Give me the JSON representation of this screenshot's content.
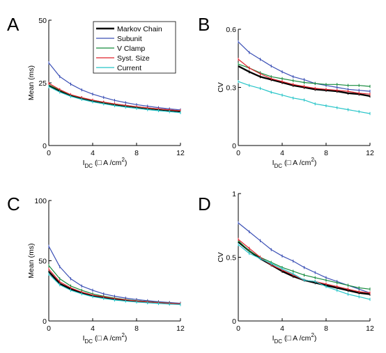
{
  "panels_letters": [
    "A",
    "B",
    "C",
    "D"
  ],
  "chart_data": [
    {
      "panel": "A",
      "type": "line",
      "xlabel_main": "I",
      "xlabel_sub": "DC",
      "xlabel_unit": " (□ A /cm",
      "xlabel_sup": "2",
      "xlabel_close": ")",
      "ylabel": "Mean (ms)",
      "xlim": [
        0,
        12
      ],
      "ylim": [
        0,
        50
      ],
      "xticks": [
        0,
        4,
        8,
        12
      ],
      "yticks": [
        0,
        25,
        50
      ],
      "legend_title_shown": true,
      "x": [
        0,
        1,
        2,
        3,
        4,
        5,
        6,
        7,
        8,
        9,
        10,
        11,
        12
      ],
      "series": [
        {
          "name": "Markov Chain",
          "color": "#000000",
          "width": 2.4,
          "values": [
            24.0,
            21.8,
            20.0,
            18.9,
            17.9,
            17.1,
            16.4,
            15.8,
            15.3,
            14.8,
            14.4,
            14.0,
            13.6
          ]
        },
        {
          "name": "Subunit",
          "color": "#3a4fb5",
          "width": 1.2,
          "values": [
            33.0,
            27.5,
            24.5,
            22.2,
            20.5,
            19.2,
            18.0,
            17.1,
            16.3,
            15.7,
            15.1,
            14.6,
            14.2
          ]
        },
        {
          "name": "V Clamp",
          "color": "#148a3c",
          "width": 1.2,
          "values": [
            24.2,
            22.1,
            20.2,
            19.0,
            18.0,
            17.2,
            16.5,
            15.9,
            15.4,
            14.9,
            14.5,
            14.1,
            13.8
          ]
        },
        {
          "name": "Syst. Size",
          "color": "#e0202a",
          "width": 1.2,
          "values": [
            24.8,
            22.3,
            20.3,
            19.1,
            18.1,
            17.3,
            16.6,
            16.0,
            15.5,
            15.0,
            14.6,
            14.2,
            13.9
          ]
        },
        {
          "name": "Current",
          "color": "#25c4c8",
          "width": 1.2,
          "values": [
            23.5,
            21.3,
            19.6,
            18.4,
            17.4,
            16.6,
            15.9,
            15.3,
            14.8,
            14.3,
            13.9,
            13.5,
            13.1
          ]
        }
      ]
    },
    {
      "panel": "B",
      "type": "line",
      "xlabel_main": "I",
      "xlabel_sub": "DC",
      "xlabel_unit": " (□ A /cm",
      "xlabel_sup": "2",
      "xlabel_close": ")",
      "ylabel": "CV",
      "xlim": [
        0,
        12
      ],
      "ylim": [
        0,
        0.6
      ],
      "xticks": [
        0,
        4,
        8,
        12
      ],
      "yticks": [
        0,
        0.3,
        0.6
      ],
      "ytick_labels": [
        "0",
        "0.3",
        "0.6"
      ],
      "x": [
        0,
        1,
        2,
        3,
        4,
        5,
        6,
        7,
        8,
        9,
        10,
        11,
        12
      ],
      "series": [
        {
          "name": "Markov Chain",
          "color": "#000000",
          "width": 2.4,
          "values": [
            0.41,
            0.38,
            0.355,
            0.34,
            0.325,
            0.31,
            0.3,
            0.29,
            0.285,
            0.28,
            0.27,
            0.265,
            0.255
          ]
        },
        {
          "name": "Subunit",
          "color": "#3a4fb5",
          "width": 1.2,
          "values": [
            0.535,
            0.48,
            0.445,
            0.41,
            0.38,
            0.355,
            0.34,
            0.32,
            0.31,
            0.3,
            0.29,
            0.285,
            0.28
          ]
        },
        {
          "name": "V Clamp",
          "color": "#148a3c",
          "width": 1.2,
          "values": [
            0.42,
            0.4,
            0.375,
            0.355,
            0.345,
            0.335,
            0.325,
            0.32,
            0.315,
            0.315,
            0.31,
            0.31,
            0.305
          ]
        },
        {
          "name": "Syst. Size",
          "color": "#e0202a",
          "width": 1.2,
          "values": [
            0.445,
            0.4,
            0.37,
            0.345,
            0.33,
            0.315,
            0.305,
            0.295,
            0.29,
            0.285,
            0.28,
            0.27,
            0.265
          ]
        },
        {
          "name": "Current",
          "color": "#25c4c8",
          "width": 1.2,
          "values": [
            0.33,
            0.31,
            0.295,
            0.275,
            0.26,
            0.245,
            0.235,
            0.215,
            0.205,
            0.195,
            0.185,
            0.175,
            0.165
          ]
        }
      ]
    },
    {
      "panel": "C",
      "type": "line",
      "xlabel_main": "I",
      "xlabel_sub": "DC",
      "xlabel_unit": " (□ A /cm",
      "xlabel_sup": "2",
      "xlabel_close": ")",
      "ylabel": "Mean (ms)",
      "xlim": [
        0,
        12
      ],
      "ylim": [
        0,
        100
      ],
      "xticks": [
        0,
        4,
        8,
        12
      ],
      "yticks": [
        0,
        50,
        100
      ],
      "x": [
        0,
        1,
        2,
        3,
        4,
        5,
        6,
        7,
        8,
        9,
        10,
        11,
        12
      ],
      "series": [
        {
          "name": "Markov Chain",
          "color": "#000000",
          "width": 2.4,
          "values": [
            41,
            31,
            26.5,
            23.5,
            21,
            19.5,
            18.2,
            17.2,
            16.4,
            15.7,
            15.1,
            14.6,
            14.2
          ]
        },
        {
          "name": "Subunit",
          "color": "#3a4fb5",
          "width": 1.2,
          "values": [
            62,
            45,
            35,
            29,
            25.5,
            22.5,
            20.5,
            19,
            17.8,
            16.8,
            16,
            15.3,
            14.7
          ]
        },
        {
          "name": "V Clamp",
          "color": "#148a3c",
          "width": 1.2,
          "values": [
            46,
            35,
            29,
            25.5,
            22.5,
            20.5,
            19,
            17.8,
            16.9,
            16.1,
            15.4,
            14.8,
            14.3
          ]
        },
        {
          "name": "Syst. Size",
          "color": "#e0202a",
          "width": 1.2,
          "values": [
            43,
            32.5,
            27.5,
            24,
            21.5,
            20,
            18.6,
            17.5,
            16.6,
            15.9,
            15.2,
            14.7,
            14.2
          ]
        },
        {
          "name": "Current",
          "color": "#25c4c8",
          "width": 1.2,
          "values": [
            39,
            30,
            25.5,
            22.5,
            20.2,
            18.7,
            17.4,
            16.5,
            15.7,
            15.1,
            14.5,
            14.0,
            13.6
          ]
        }
      ]
    },
    {
      "panel": "D",
      "type": "line",
      "xlabel_main": "I",
      "xlabel_sub": "DC",
      "xlabel_unit": " (□ A /cm",
      "xlabel_sup": "2",
      "xlabel_close": ")",
      "ylabel": "CV",
      "xlim": [
        0,
        12
      ],
      "ylim": [
        0,
        1
      ],
      "xticks": [
        0,
        4,
        8,
        12
      ],
      "yticks": [
        0,
        0.5,
        1
      ],
      "ytick_labels": [
        "0",
        "0.5",
        "1"
      ],
      "x": [
        0,
        1,
        2,
        3,
        4,
        5,
        6,
        7,
        8,
        9,
        10,
        11,
        12
      ],
      "series": [
        {
          "name": "Markov Chain",
          "color": "#000000",
          "width": 2.4,
          "values": [
            0.62,
            0.55,
            0.49,
            0.44,
            0.39,
            0.35,
            0.32,
            0.3,
            0.28,
            0.26,
            0.24,
            0.22,
            0.21
          ]
        },
        {
          "name": "Subunit",
          "color": "#3a4fb5",
          "width": 1.2,
          "values": [
            0.77,
            0.7,
            0.63,
            0.56,
            0.51,
            0.47,
            0.42,
            0.38,
            0.34,
            0.31,
            0.28,
            0.25,
            0.22
          ]
        },
        {
          "name": "V Clamp",
          "color": "#148a3c",
          "width": 1.2,
          "values": [
            0.63,
            0.55,
            0.5,
            0.46,
            0.42,
            0.39,
            0.36,
            0.34,
            0.32,
            0.3,
            0.28,
            0.26,
            0.25
          ]
        },
        {
          "name": "Syst. Size",
          "color": "#e0202a",
          "width": 1.2,
          "values": [
            0.64,
            0.57,
            0.5,
            0.44,
            0.4,
            0.36,
            0.32,
            0.31,
            0.29,
            0.27,
            0.25,
            0.23,
            0.22
          ]
        },
        {
          "name": "Current",
          "color": "#25c4c8",
          "width": 1.2,
          "values": [
            0.6,
            0.53,
            0.49,
            0.45,
            0.41,
            0.37,
            0.32,
            0.31,
            0.27,
            0.24,
            0.21,
            0.19,
            0.17
          ]
        }
      ]
    }
  ]
}
